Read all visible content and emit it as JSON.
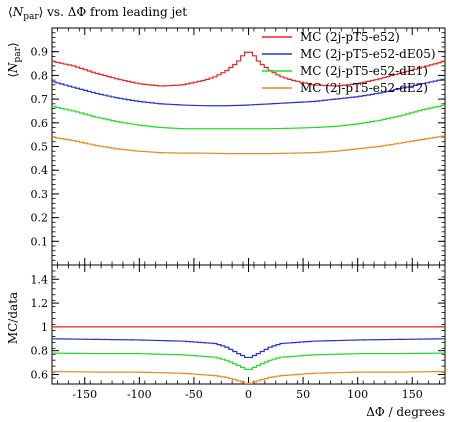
{
  "chart_data": [
    {
      "type": "line",
      "title": "⟨N_par⟩ vs. ΔΦ from leading jet",
      "title_main": "N",
      "title_sub": "par",
      "title_rest": "vs. ΔΦ from leading jet",
      "ylabel_main": "N",
      "ylabel_sub": "par",
      "xlim": [
        -180,
        180
      ],
      "ylim": [
        0,
        1.0
      ],
      "y_ticks": [
        0.1,
        0.2,
        0.3,
        0.4,
        0.5,
        0.6,
        0.7,
        0.8,
        0.9
      ],
      "y_tick_labels": [
        "0.1",
        "0.2",
        "0.3",
        "0.4",
        "0.5",
        "0.6",
        "0.7",
        "0.8",
        "0.9"
      ],
      "grid": false,
      "legend_position": "top-right",
      "series": [
        {
          "name": "MC (2j-pT5-e52)",
          "color": "#ee2222",
          "x": [
            -180,
            -160,
            -140,
            -120,
            -100,
            -80,
            -60,
            -40,
            -30,
            -20,
            -10,
            -5,
            0,
            5,
            10,
            20,
            30,
            40,
            60,
            80,
            100,
            120,
            140,
            160,
            180
          ],
          "y": [
            0.86,
            0.84,
            0.81,
            0.785,
            0.765,
            0.755,
            0.76,
            0.78,
            0.795,
            0.82,
            0.855,
            0.885,
            0.905,
            0.885,
            0.855,
            0.82,
            0.795,
            0.78,
            0.76,
            0.755,
            0.765,
            0.785,
            0.81,
            0.835,
            0.86
          ]
        },
        {
          "name": "MC (2j-pT5-e52-dE05)",
          "color": "#2233dd",
          "x": [
            -180,
            -160,
            -140,
            -120,
            -100,
            -80,
            -60,
            -40,
            -20,
            0,
            20,
            40,
            60,
            80,
            100,
            120,
            140,
            160,
            180
          ],
          "y": [
            0.775,
            0.75,
            0.725,
            0.705,
            0.69,
            0.68,
            0.675,
            0.672,
            0.672,
            0.675,
            0.68,
            0.685,
            0.69,
            0.7,
            0.71,
            0.725,
            0.745,
            0.765,
            0.785
          ]
        },
        {
          "name": "MC (2j-pT5-e52-dE1)",
          "color": "#22dd22",
          "x": [
            -180,
            -160,
            -140,
            -120,
            -100,
            -80,
            -60,
            -40,
            -20,
            0,
            20,
            40,
            60,
            80,
            100,
            120,
            140,
            160,
            180
          ],
          "y": [
            0.67,
            0.65,
            0.625,
            0.605,
            0.59,
            0.58,
            0.575,
            0.575,
            0.575,
            0.575,
            0.575,
            0.577,
            0.58,
            0.585,
            0.595,
            0.61,
            0.63,
            0.655,
            0.675
          ]
        },
        {
          "name": "MC (2j-pT5-e52-dE2)",
          "color": "#ee8822",
          "x": [
            -180,
            -160,
            -140,
            -120,
            -100,
            -80,
            -60,
            -40,
            -20,
            0,
            20,
            40,
            60,
            80,
            100,
            120,
            140,
            160,
            180
          ],
          "y": [
            0.54,
            0.525,
            0.505,
            0.49,
            0.48,
            0.474,
            0.472,
            0.472,
            0.47,
            0.47,
            0.47,
            0.472,
            0.474,
            0.48,
            0.49,
            0.5,
            0.515,
            0.53,
            0.545
          ]
        }
      ]
    },
    {
      "type": "line",
      "xlabel": "ΔΦ / degrees",
      "ylabel": "MC/data",
      "xlim": [
        -180,
        180
      ],
      "ylim": [
        0.52,
        1.52
      ],
      "x_ticks": [
        -150,
        -100,
        -50,
        0,
        50,
        100,
        150
      ],
      "x_tick_labels": [
        "-150",
        "-100",
        "-50",
        "0",
        "50",
        "100",
        "150"
      ],
      "y_ticks": [
        0.6,
        0.8,
        1.0,
        1.2,
        1.4
      ],
      "y_tick_labels": [
        "0.6",
        "0.8",
        "1",
        "1.2",
        "1.4"
      ],
      "reference_line": 1.0,
      "series": [
        {
          "name": "MC (2j-pT5-e52)",
          "color": "#ee2222",
          "x": [
            -180,
            180
          ],
          "y": [
            1.0,
            1.0
          ]
        },
        {
          "name": "MC (2j-pT5-e52-dE05)",
          "color": "#2233dd",
          "x": [
            -180,
            -140,
            -100,
            -60,
            -30,
            -20,
            -10,
            0,
            10,
            20,
            30,
            60,
            100,
            140,
            180
          ],
          "y": [
            0.9,
            0.895,
            0.89,
            0.88,
            0.86,
            0.83,
            0.78,
            0.735,
            0.78,
            0.83,
            0.86,
            0.88,
            0.89,
            0.895,
            0.9
          ]
        },
        {
          "name": "MC (2j-pT5-e52-dE1)",
          "color": "#22dd22",
          "x": [
            -180,
            -140,
            -100,
            -60,
            -30,
            -20,
            -10,
            0,
            10,
            20,
            30,
            60,
            100,
            140,
            180
          ],
          "y": [
            0.78,
            0.775,
            0.775,
            0.765,
            0.745,
            0.72,
            0.68,
            0.635,
            0.68,
            0.72,
            0.745,
            0.765,
            0.775,
            0.775,
            0.78
          ]
        },
        {
          "name": "MC (2j-pT5-e52-dE2)",
          "color": "#ee8822",
          "x": [
            -180,
            -140,
            -100,
            -60,
            -30,
            -20,
            -10,
            0,
            10,
            20,
            30,
            60,
            100,
            140,
            180
          ],
          "y": [
            0.625,
            0.62,
            0.62,
            0.61,
            0.59,
            0.575,
            0.55,
            0.52,
            0.55,
            0.575,
            0.59,
            0.61,
            0.62,
            0.62,
            0.625
          ]
        }
      ]
    }
  ]
}
